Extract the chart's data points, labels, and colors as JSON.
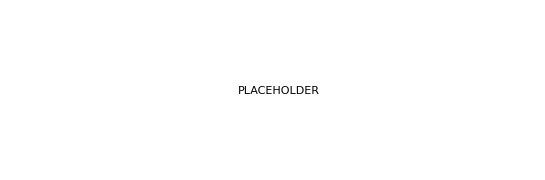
{
  "bg": "#ffffff",
  "lw": 1.5,
  "lw2": 2.8,
  "fc": "black",
  "fs": 9.5,
  "fs_small": 8.5
}
